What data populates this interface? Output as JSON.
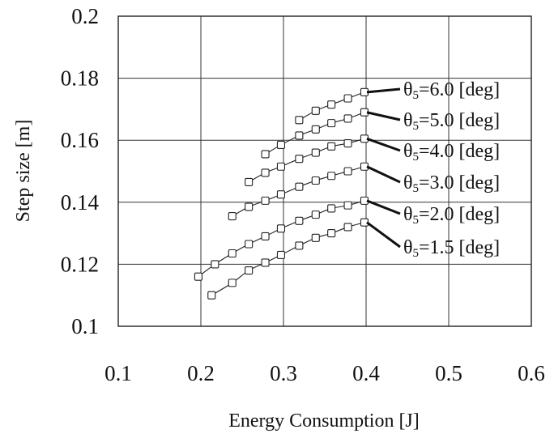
{
  "chart_data": {
    "type": "scatter",
    "title": "",
    "xlabel": "Energy Consumption  [J]",
    "ylabel": "Step size [m]",
    "xlim": [
      0.1,
      0.6
    ],
    "ylim": [
      0.1,
      0.2
    ],
    "xticks": [
      0.1,
      0.2,
      0.3,
      0.4,
      0.5,
      0.6
    ],
    "yticks": [
      0.1,
      0.12,
      0.14,
      0.16,
      0.18,
      0.2
    ],
    "xtick_labels": [
      "0.1",
      "0.2",
      "0.3",
      "0.4",
      "0.5",
      "0.6"
    ],
    "ytick_labels": [
      "0.1",
      "0.12",
      "0.14",
      "0.16",
      "0.18",
      "0.2"
    ],
    "grid": true,
    "marker": "open-square",
    "series": [
      {
        "name": "θ5=6.0 [deg]",
        "label_main": "θ",
        "label_sub": "5",
        "label_rest": "=6.0 [deg]",
        "x": [
          0.319,
          0.339,
          0.358,
          0.378,
          0.398
        ],
        "y": [
          0.1665,
          0.1695,
          0.1715,
          0.1735,
          0.1755
        ]
      },
      {
        "name": "θ5=5.0 [deg]",
        "label_main": "θ",
        "label_sub": "5",
        "label_rest": "=5.0 [deg]",
        "x": [
          0.278,
          0.297,
          0.319,
          0.339,
          0.358,
          0.378,
          0.398
        ],
        "y": [
          0.1555,
          0.1585,
          0.1615,
          0.1635,
          0.1655,
          0.167,
          0.169
        ]
      },
      {
        "name": "θ5=4.0 [deg]",
        "label_main": "θ",
        "label_sub": "5",
        "label_rest": "=4.0 [deg]",
        "x": [
          0.258,
          0.278,
          0.297,
          0.319,
          0.339,
          0.358,
          0.378,
          0.398
        ],
        "y": [
          0.1465,
          0.1495,
          0.1515,
          0.154,
          0.156,
          0.158,
          0.159,
          0.1605
        ]
      },
      {
        "name": "θ5=3.0 [deg]",
        "label_main": "θ",
        "label_sub": "5",
        "label_rest": "=3.0 [deg]",
        "x": [
          0.238,
          0.258,
          0.278,
          0.297,
          0.319,
          0.339,
          0.358,
          0.378,
          0.398
        ],
        "y": [
          0.1355,
          0.1385,
          0.1405,
          0.1425,
          0.145,
          0.147,
          0.1485,
          0.15,
          0.1515
        ]
      },
      {
        "name": "θ5=2.0 [deg]",
        "label_main": "θ",
        "label_sub": "5",
        "label_rest": "=2.0 [deg]",
        "x": [
          0.197,
          0.217,
          0.238,
          0.258,
          0.278,
          0.297,
          0.319,
          0.339,
          0.358,
          0.378,
          0.398
        ],
        "y": [
          0.116,
          0.12,
          0.1235,
          0.1265,
          0.129,
          0.1315,
          0.134,
          0.136,
          0.138,
          0.139,
          0.1405
        ]
      },
      {
        "name": "θ5=1.5 [deg]",
        "label_main": "θ",
        "label_sub": "5",
        "label_rest": "=1.5 [deg]",
        "x": [
          0.213,
          0.238,
          0.258,
          0.278,
          0.297,
          0.319,
          0.339,
          0.358,
          0.378,
          0.398
        ],
        "y": [
          0.11,
          0.114,
          0.118,
          0.1205,
          0.123,
          0.126,
          0.1285,
          0.13,
          0.132,
          0.1335
        ]
      }
    ]
  }
}
